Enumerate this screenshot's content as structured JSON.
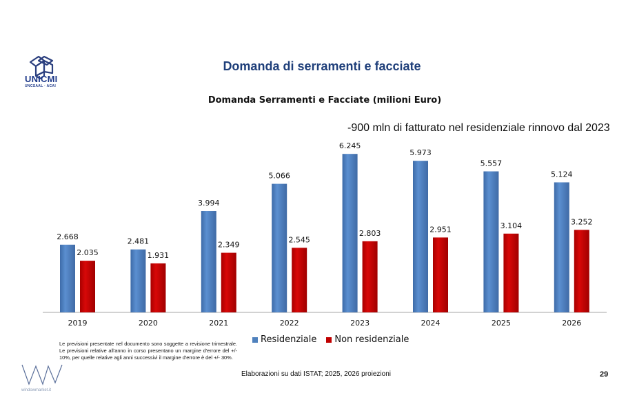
{
  "header": {
    "logo_text": "UNICMI",
    "logo_subtext": "UNCSAAL · ACAI",
    "title": "Domanda di serramenti e facciate"
  },
  "annotation": "-900 mln di fatturato nel residenziale rinnovo dal 2023",
  "chart_data": {
    "type": "bar",
    "title": "Domanda Serramenti e Facciate (milioni Euro)",
    "xlabel": "",
    "ylabel": "",
    "ylim": [
      0,
      7
    ],
    "grid": false,
    "legend_position": "bottom",
    "categories": [
      "2019",
      "2020",
      "2021",
      "2022",
      "2023",
      "2024",
      "2025",
      "2026"
    ],
    "series": [
      {
        "name": "Residenziale",
        "color": "#4f81bd",
        "values": [
          2.668,
          2.481,
          3.994,
          5.066,
          6.245,
          5.973,
          5.557,
          5.124
        ],
        "labels": [
          "2.668",
          "2.481",
          "3.994",
          "5.066",
          "6.245",
          "5.973",
          "5.557",
          "5.124"
        ]
      },
      {
        "name": "Non residenziale",
        "color": "#c00000",
        "values": [
          2.035,
          1.931,
          2.349,
          2.545,
          2.803,
          2.951,
          3.104,
          3.252
        ],
        "labels": [
          "2.035",
          "1.931",
          "2.349",
          "2.545",
          "2.803",
          "2.951",
          "3.104",
          "3.252"
        ]
      }
    ]
  },
  "legend": {
    "items": [
      "Residenziale",
      "Non residenziale"
    ]
  },
  "footer": {
    "disclaimer": "Le previsioni presentate nel documento sono soggette a revisione trimestrale. Le previsioni relative all'anno in corso presentano un margine d'errore  del +/- 10%, per quelle relative agli anni successivi il margine d'errore è del +/- 30%.",
    "source": "Elaborazioni su dati ISTAT; 2025, 2026 proiezioni",
    "page_number": "29",
    "brand_text": "windowmarket.it"
  }
}
